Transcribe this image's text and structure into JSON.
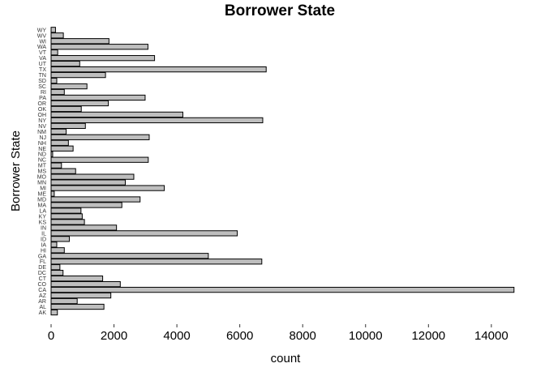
{
  "chart_data": {
    "type": "bar",
    "orientation": "horizontal",
    "title": "Borrower State",
    "xlabel": "count",
    "ylabel": "Borrower State",
    "xlim": [
      0,
      14700
    ],
    "xticks": [
      0,
      2000,
      4000,
      6000,
      8000,
      10000,
      12000,
      14000
    ],
    "xtick_labels": [
      "0",
      "2000",
      "4000",
      "6000",
      "8000",
      "10000",
      "12000",
      "14000"
    ],
    "grid": false,
    "bar_fill": "#bebebe",
    "bar_stroke": "#000000",
    "categories": [
      "AK",
      "AL",
      "AR",
      "AZ",
      "CA",
      "CO",
      "CT",
      "DC",
      "DE",
      "FL",
      "GA",
      "HI",
      "IA",
      "ID",
      "IL",
      "IN",
      "KS",
      "KY",
      "LA",
      "MA",
      "MD",
      "ME",
      "MI",
      "MN",
      "MO",
      "MS",
      "MT",
      "NC",
      "ND",
      "NE",
      "NH",
      "NJ",
      "NM",
      "NV",
      "NY",
      "OH",
      "OK",
      "OR",
      "PA",
      "RI",
      "SC",
      "SD",
      "TN",
      "TX",
      "UT",
      "VA",
      "VT",
      "WA",
      "WI",
      "WV",
      "WY"
    ],
    "values": [
      200,
      1680,
      830,
      1900,
      14720,
      2200,
      1640,
      380,
      280,
      6700,
      5000,
      420,
      180,
      580,
      5920,
      2080,
      1060,
      990,
      950,
      2250,
      2830,
      100,
      3600,
      2360,
      2630,
      780,
      330,
      3090,
      50,
      700,
      550,
      3120,
      480,
      1090,
      6730,
      4190,
      960,
      1820,
      2990,
      420,
      1140,
      180,
      1730,
      6840,
      910,
      3290,
      210,
      3080,
      1840,
      390,
      140
    ]
  }
}
